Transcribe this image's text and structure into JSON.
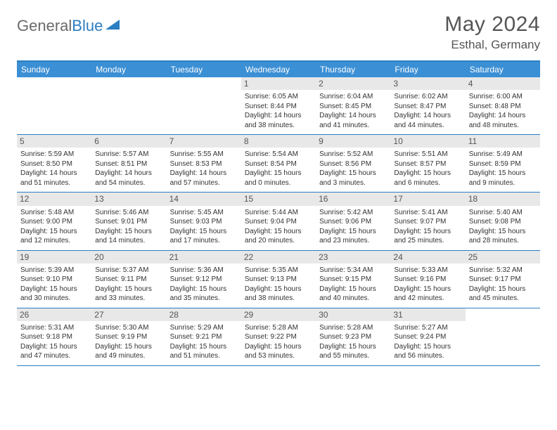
{
  "brand": {
    "part1": "General",
    "part2": "Blue"
  },
  "title": "May 2024",
  "location": "Esthal, Germany",
  "colors": {
    "header_bg": "#3b8fd4",
    "border": "#2b7ec2",
    "daynum_bg": "#e8e8e8",
    "text": "#333333",
    "logo_gray": "#6b6b6b",
    "logo_blue": "#2b7ec2"
  },
  "weekdays": [
    "Sunday",
    "Monday",
    "Tuesday",
    "Wednesday",
    "Thursday",
    "Friday",
    "Saturday"
  ],
  "weeks": [
    [
      null,
      null,
      null,
      {
        "n": "1",
        "sr": "6:05 AM",
        "ss": "8:44 PM",
        "dh": "14",
        "dm": "38"
      },
      {
        "n": "2",
        "sr": "6:04 AM",
        "ss": "8:45 PM",
        "dh": "14",
        "dm": "41"
      },
      {
        "n": "3",
        "sr": "6:02 AM",
        "ss": "8:47 PM",
        "dh": "14",
        "dm": "44"
      },
      {
        "n": "4",
        "sr": "6:00 AM",
        "ss": "8:48 PM",
        "dh": "14",
        "dm": "48"
      }
    ],
    [
      {
        "n": "5",
        "sr": "5:59 AM",
        "ss": "8:50 PM",
        "dh": "14",
        "dm": "51"
      },
      {
        "n": "6",
        "sr": "5:57 AM",
        "ss": "8:51 PM",
        "dh": "14",
        "dm": "54"
      },
      {
        "n": "7",
        "sr": "5:55 AM",
        "ss": "8:53 PM",
        "dh": "14",
        "dm": "57"
      },
      {
        "n": "8",
        "sr": "5:54 AM",
        "ss": "8:54 PM",
        "dh": "15",
        "dm": "0"
      },
      {
        "n": "9",
        "sr": "5:52 AM",
        "ss": "8:56 PM",
        "dh": "15",
        "dm": "3"
      },
      {
        "n": "10",
        "sr": "5:51 AM",
        "ss": "8:57 PM",
        "dh": "15",
        "dm": "6"
      },
      {
        "n": "11",
        "sr": "5:49 AM",
        "ss": "8:59 PM",
        "dh": "15",
        "dm": "9"
      }
    ],
    [
      {
        "n": "12",
        "sr": "5:48 AM",
        "ss": "9:00 PM",
        "dh": "15",
        "dm": "12"
      },
      {
        "n": "13",
        "sr": "5:46 AM",
        "ss": "9:01 PM",
        "dh": "15",
        "dm": "14"
      },
      {
        "n": "14",
        "sr": "5:45 AM",
        "ss": "9:03 PM",
        "dh": "15",
        "dm": "17"
      },
      {
        "n": "15",
        "sr": "5:44 AM",
        "ss": "9:04 PM",
        "dh": "15",
        "dm": "20"
      },
      {
        "n": "16",
        "sr": "5:42 AM",
        "ss": "9:06 PM",
        "dh": "15",
        "dm": "23"
      },
      {
        "n": "17",
        "sr": "5:41 AM",
        "ss": "9:07 PM",
        "dh": "15",
        "dm": "25"
      },
      {
        "n": "18",
        "sr": "5:40 AM",
        "ss": "9:08 PM",
        "dh": "15",
        "dm": "28"
      }
    ],
    [
      {
        "n": "19",
        "sr": "5:39 AM",
        "ss": "9:10 PM",
        "dh": "15",
        "dm": "30"
      },
      {
        "n": "20",
        "sr": "5:37 AM",
        "ss": "9:11 PM",
        "dh": "15",
        "dm": "33"
      },
      {
        "n": "21",
        "sr": "5:36 AM",
        "ss": "9:12 PM",
        "dh": "15",
        "dm": "35"
      },
      {
        "n": "22",
        "sr": "5:35 AM",
        "ss": "9:13 PM",
        "dh": "15",
        "dm": "38"
      },
      {
        "n": "23",
        "sr": "5:34 AM",
        "ss": "9:15 PM",
        "dh": "15",
        "dm": "40"
      },
      {
        "n": "24",
        "sr": "5:33 AM",
        "ss": "9:16 PM",
        "dh": "15",
        "dm": "42"
      },
      {
        "n": "25",
        "sr": "5:32 AM",
        "ss": "9:17 PM",
        "dh": "15",
        "dm": "45"
      }
    ],
    [
      {
        "n": "26",
        "sr": "5:31 AM",
        "ss": "9:18 PM",
        "dh": "15",
        "dm": "47"
      },
      {
        "n": "27",
        "sr": "5:30 AM",
        "ss": "9:19 PM",
        "dh": "15",
        "dm": "49"
      },
      {
        "n": "28",
        "sr": "5:29 AM",
        "ss": "9:21 PM",
        "dh": "15",
        "dm": "51"
      },
      {
        "n": "29",
        "sr": "5:28 AM",
        "ss": "9:22 PM",
        "dh": "15",
        "dm": "53"
      },
      {
        "n": "30",
        "sr": "5:28 AM",
        "ss": "9:23 PM",
        "dh": "15",
        "dm": "55"
      },
      {
        "n": "31",
        "sr": "5:27 AM",
        "ss": "9:24 PM",
        "dh": "15",
        "dm": "56"
      },
      null
    ]
  ]
}
